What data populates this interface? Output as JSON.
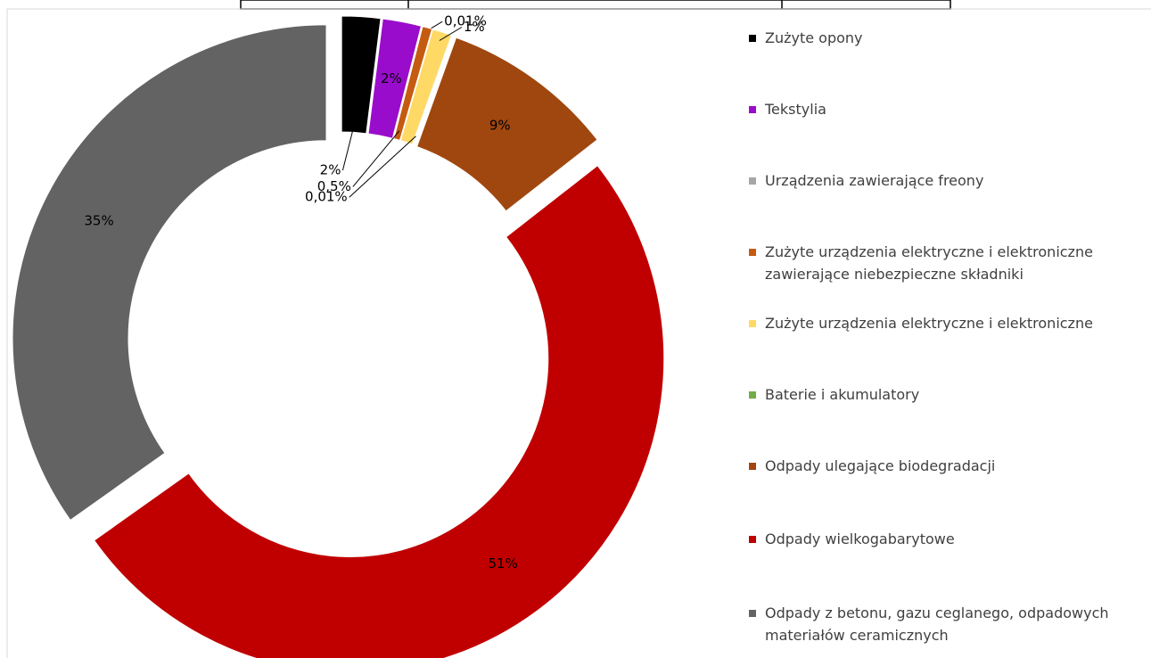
{
  "chart_data": {
    "type": "donut",
    "categories": [
      "Zużyte opony",
      "Tekstylia",
      "Urządzenia zawierające freony",
      "Zużyte urządzenia elektryczne i elektroniczne zawierające niebezpieczne składniki",
      "Zużyte urządzenia elektryczne i elektroniczne",
      "Baterie i akumulatory",
      "Odpady ulegające biodegradacji",
      "Odpady wielkogabarytowe",
      "Odpady z betonu, gazu ceglanego, odpadowych materiałów ceramicznych"
    ],
    "values": [
      2,
      2,
      0.01,
      0.5,
      1,
      0.01,
      9,
      51,
      35
    ],
    "value_labels": [
      "2%",
      "2%",
      "0,01%",
      "0,5%",
      "1%",
      "0,01%",
      "9%",
      "51%",
      "35%"
    ],
    "colors": [
      "#000000",
      "#9a0ccc",
      "#a6a6a6",
      "#c55a11",
      "#ffd966",
      "#70ad47",
      "#a0470f",
      "#c00000",
      "#636363"
    ],
    "legend": "right"
  }
}
